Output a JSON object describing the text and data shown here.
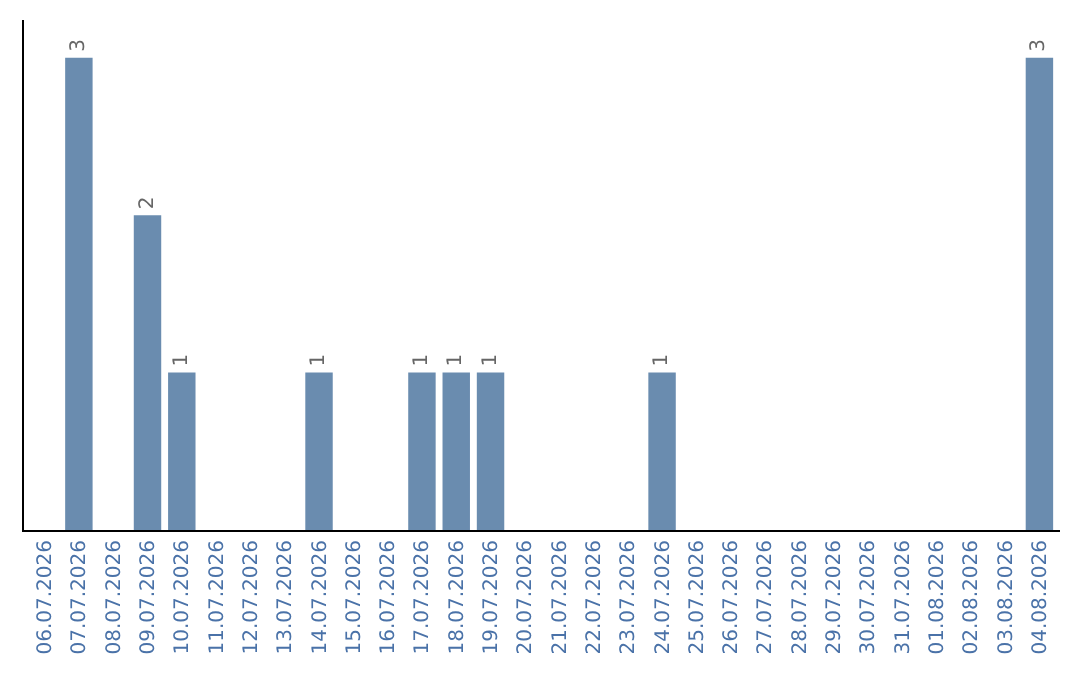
{
  "chart_data": {
    "type": "bar",
    "categories": [
      "06.07.2026",
      "07.07.2026",
      "08.07.2026",
      "09.07.2026",
      "10.07.2026",
      "11.07.2026",
      "12.07.2026",
      "13.07.2026",
      "14.07.2026",
      "15.07.2026",
      "16.07.2026",
      "17.07.2026",
      "18.07.2026",
      "19.07.2026",
      "20.07.2026",
      "21.07.2026",
      "22.07.2026",
      "23.07.2026",
      "24.07.2026",
      "25.07.2026",
      "26.07.2026",
      "27.07.2026",
      "28.07.2026",
      "29.07.2026",
      "30.07.2026",
      "31.07.2026",
      "01.08.2026",
      "02.08.2026",
      "03.08.2026",
      "04.08.2026"
    ],
    "values": [
      0,
      3,
      0,
      2,
      1,
      0,
      0,
      0,
      1,
      0,
      0,
      1,
      1,
      1,
      0,
      0,
      0,
      0,
      1,
      0,
      0,
      0,
      0,
      0,
      0,
      0,
      0,
      0,
      0,
      3
    ],
    "value_labels": [
      null,
      "3",
      null,
      "2",
      "1",
      null,
      null,
      null,
      "1",
      null,
      null,
      "1",
      "1",
      "1",
      null,
      null,
      null,
      null,
      "1",
      null,
      null,
      null,
      null,
      null,
      null,
      null,
      null,
      null,
      null,
      "3"
    ],
    "color": "#6a8caf",
    "grid": false,
    "legend": false
  }
}
